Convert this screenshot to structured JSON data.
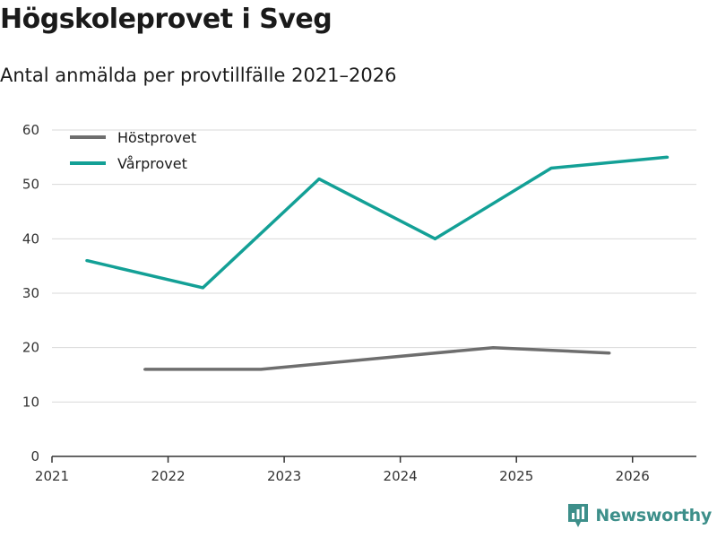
{
  "header": {
    "title": "Högskoleprovet i Sveg",
    "subtitle": "Antal anmälda per provtillfälle 2021–2026"
  },
  "brand": {
    "name": "Newsworthy",
    "color": "#3d8f8a"
  },
  "chart_data": {
    "type": "line",
    "title": "Högskoleprovet i Sveg",
    "subtitle": "Antal anmälda per provtillfälle 2021–2026",
    "xlabel": "",
    "ylabel": "",
    "ylim": [
      0,
      60
    ],
    "xlim": [
      2021,
      2026.55
    ],
    "yticks": [
      "0",
      "10",
      "20",
      "30",
      "40",
      "50",
      "60"
    ],
    "xticks": [
      "2021",
      "2022",
      "2023",
      "2024",
      "2025",
      "2026"
    ],
    "grid": true,
    "legend_position": "top-left",
    "series": [
      {
        "name": "Höstprovet",
        "color": "#6e6e6e",
        "x": [
          2021.8,
          2022.8,
          2023.8,
          2024.8,
          2025.8
        ],
        "values": [
          16,
          16,
          18,
          20,
          19
        ]
      },
      {
        "name": "Vårprovet",
        "color": "#13a096",
        "x": [
          2021.3,
          2022.3,
          2023.3,
          2024.3,
          2025.3,
          2026.3
        ],
        "values": [
          36,
          31,
          51,
          40,
          53,
          55
        ]
      }
    ]
  }
}
